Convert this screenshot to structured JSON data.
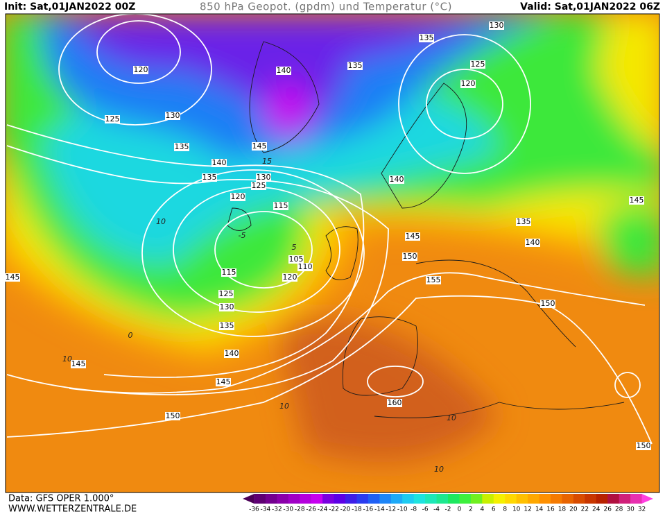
{
  "header": {
    "init": "Init: Sat,01JAN2022 00Z",
    "title": "850 hPa Geopot. (gpdm) und Temperatur (°C)",
    "valid": "Valid: Sat,01JAN2022 06Z"
  },
  "footer": {
    "source": "Data: GFS OPER 1.000°",
    "site": "WWW.WETTERZENTRALE.DE"
  },
  "colorbar": {
    "labels": [
      -36,
      -34,
      -32,
      -30,
      -28,
      -26,
      -24,
      -22,
      -20,
      -18,
      -16,
      -14,
      -12,
      -10,
      -8,
      -6,
      -4,
      -2,
      0,
      2,
      4,
      6,
      8,
      10,
      12,
      14,
      16,
      18,
      20,
      22,
      24,
      26,
      28,
      30,
      32
    ],
    "colors": [
      "#4b0057",
      "#5e0073",
      "#73008f",
      "#8a00aa",
      "#a000c6",
      "#b400dd",
      "#c600f0",
      "#7a00e0",
      "#5c00e6",
      "#3d1ee8",
      "#2a3cf0",
      "#2060f5",
      "#1e86f8",
      "#1eaaf8",
      "#1ecbf2",
      "#1ee3e0",
      "#1ee8b8",
      "#1ee890",
      "#1ee860",
      "#3ef03e",
      "#70f020",
      "#c8f000",
      "#f5f000",
      "#ffd800",
      "#ffc000",
      "#ffa800",
      "#ff9000",
      "#f57a00",
      "#e86400",
      "#d84c00",
      "#c83600",
      "#b82200",
      "#b01040",
      "#d0207a",
      "#e830b0",
      "#ff40e0"
    ]
  },
  "contour_labels": [
    120,
    125,
    130,
    135,
    140,
    135,
    130,
    125,
    120,
    115,
    145,
    140,
    135,
    135,
    130,
    125,
    120,
    140,
    135,
    145,
    140,
    145,
    150,
    155,
    150,
    105,
    110,
    120,
    115,
    125,
    130,
    135,
    140,
    145,
    150,
    160,
    145,
    145,
    150
  ],
  "temperature_labels": [
    10,
    0,
    5,
    10,
    10,
    10,
    10,
    15,
    -5
  ]
}
